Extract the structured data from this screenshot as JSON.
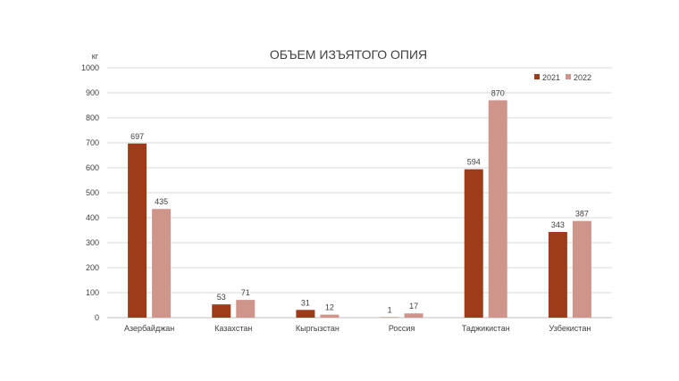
{
  "chart_data": {
    "type": "bar",
    "title": "ОБЪЕМ ИЗЪЯТОГО ОПИЯ",
    "ylabel": "кг",
    "xlabel": "",
    "ylim": [
      0,
      1000
    ],
    "yticks": [
      0,
      100,
      200,
      300,
      400,
      500,
      600,
      700,
      800,
      900,
      1000
    ],
    "grid": true,
    "legend_position": "top-right",
    "categories": [
      "Азербайджан",
      "Казахстан",
      "Кыргызстан",
      "Россия",
      "Таджикистан",
      "Узбекистан"
    ],
    "series": [
      {
        "name": "2021",
        "color": "#9e3b18",
        "values": [
          697,
          53,
          31,
          1,
          594,
          343
        ]
      },
      {
        "name": "2022",
        "color": "#cf958a",
        "values": [
          435,
          71,
          12,
          17,
          870,
          387
        ]
      }
    ]
  }
}
